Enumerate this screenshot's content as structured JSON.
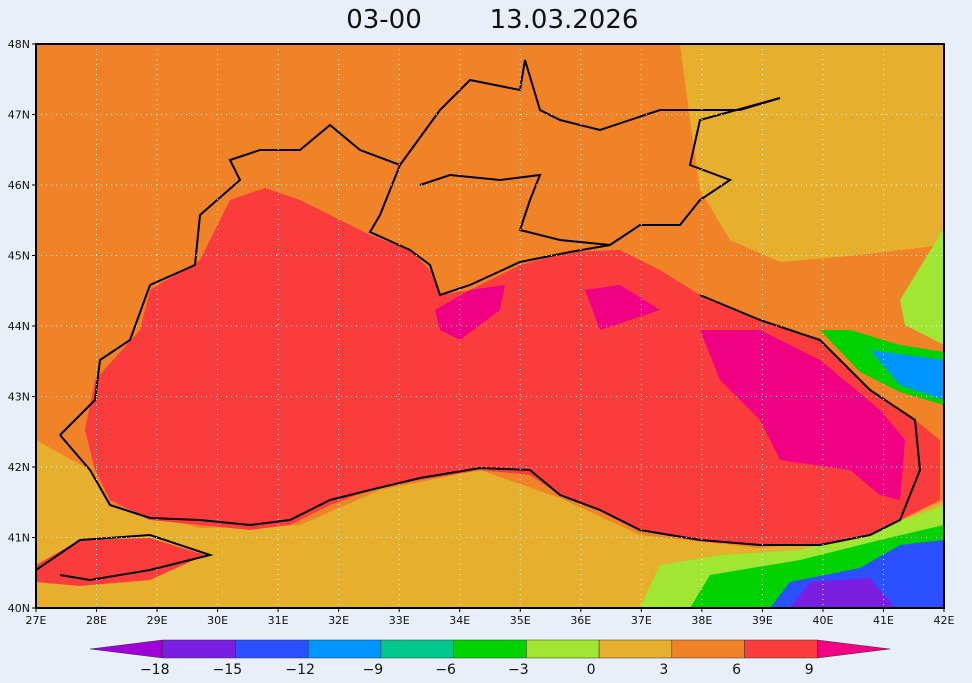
{
  "map": {
    "title": {
      "time": "03-00",
      "date": "13.03.2026"
    },
    "lon_labels": [
      "27E",
      "28E",
      "29E",
      "30E",
      "31E",
      "32E",
      "33E",
      "34E",
      "35E",
      "36E",
      "37E",
      "38E",
      "39E",
      "40E",
      "41E",
      "42E"
    ],
    "lat_labels": [
      "40N",
      "41N",
      "42N",
      "43N",
      "44N",
      "45N",
      "46N",
      "47N",
      "48N"
    ],
    "colorbar": {
      "labels": [
        "−18",
        "−15",
        "−12",
        "−9",
        "−6",
        "−3",
        "0",
        "3",
        "6",
        "9"
      ],
      "colors": [
        "#a000d8",
        "#7a1ee0",
        "#2a50ff",
        "#0096ff",
        "#00c88c",
        "#00d200",
        "#a0e632",
        "#e6af2d",
        "#f08228",
        "#fa3c3c",
        "#f00082"
      ]
    }
  }
}
